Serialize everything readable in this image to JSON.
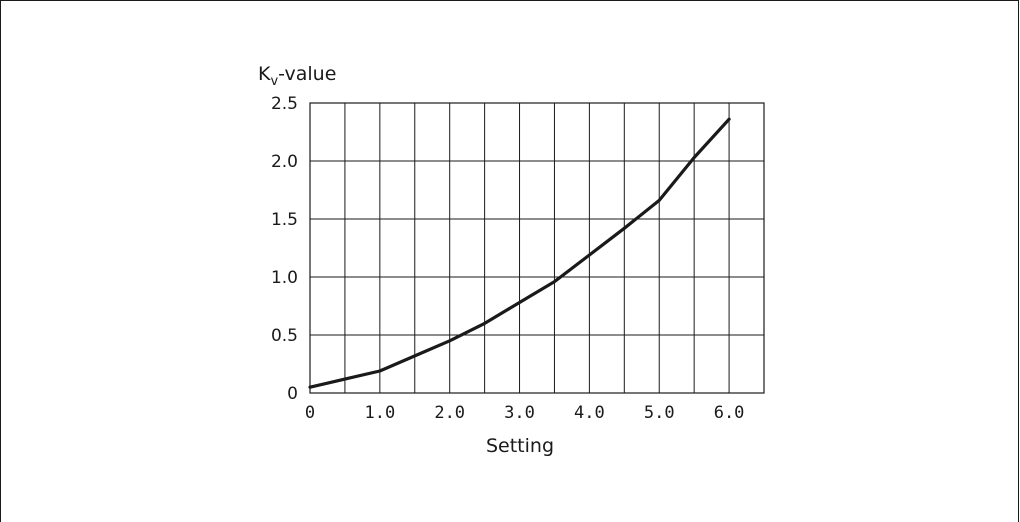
{
  "chart_data": {
    "type": "line",
    "title": "",
    "ylabel_main": "K",
    "ylabel_sub": "v",
    "ylabel_suffix": "-value",
    "xlabel": "Setting",
    "xlim": [
      0,
      6.5
    ],
    "ylim": [
      0,
      2.5
    ],
    "x_ticks": [
      {
        "value": 0,
        "label": "0"
      },
      {
        "value": 1,
        "label": "1.0"
      },
      {
        "value": 2,
        "label": "2.0"
      },
      {
        "value": 3,
        "label": "3.0"
      },
      {
        "value": 4,
        "label": "4.0"
      },
      {
        "value": 5,
        "label": "5.0"
      },
      {
        "value": 6,
        "label": "6.0"
      }
    ],
    "y_ticks": [
      {
        "value": 0,
        "label": "0"
      },
      {
        "value": 0.5,
        "label": "0.5"
      },
      {
        "value": 1.0,
        "label": "1.0"
      },
      {
        "value": 1.5,
        "label": "1.5"
      },
      {
        "value": 2.0,
        "label": "2.0"
      },
      {
        "value": 2.5,
        "label": "2.5"
      }
    ],
    "x_grid_step": 0.5,
    "y_grid_step": 0.5,
    "grid": true,
    "legend": "none",
    "series": [
      {
        "x": [
          0,
          0.5,
          1.0,
          1.5,
          2.0,
          2.5,
          3.0,
          3.5,
          4.0,
          4.5,
          5.0,
          5.5,
          6.0
        ],
        "y": [
          0.05,
          0.12,
          0.19,
          0.32,
          0.45,
          0.6,
          0.78,
          0.96,
          1.19,
          1.42,
          1.66,
          2.03,
          2.36
        ]
      }
    ],
    "colors": {
      "line": "#1a1a1a",
      "grid": "#1a1a1a",
      "text": "#1a1a1a"
    }
  }
}
